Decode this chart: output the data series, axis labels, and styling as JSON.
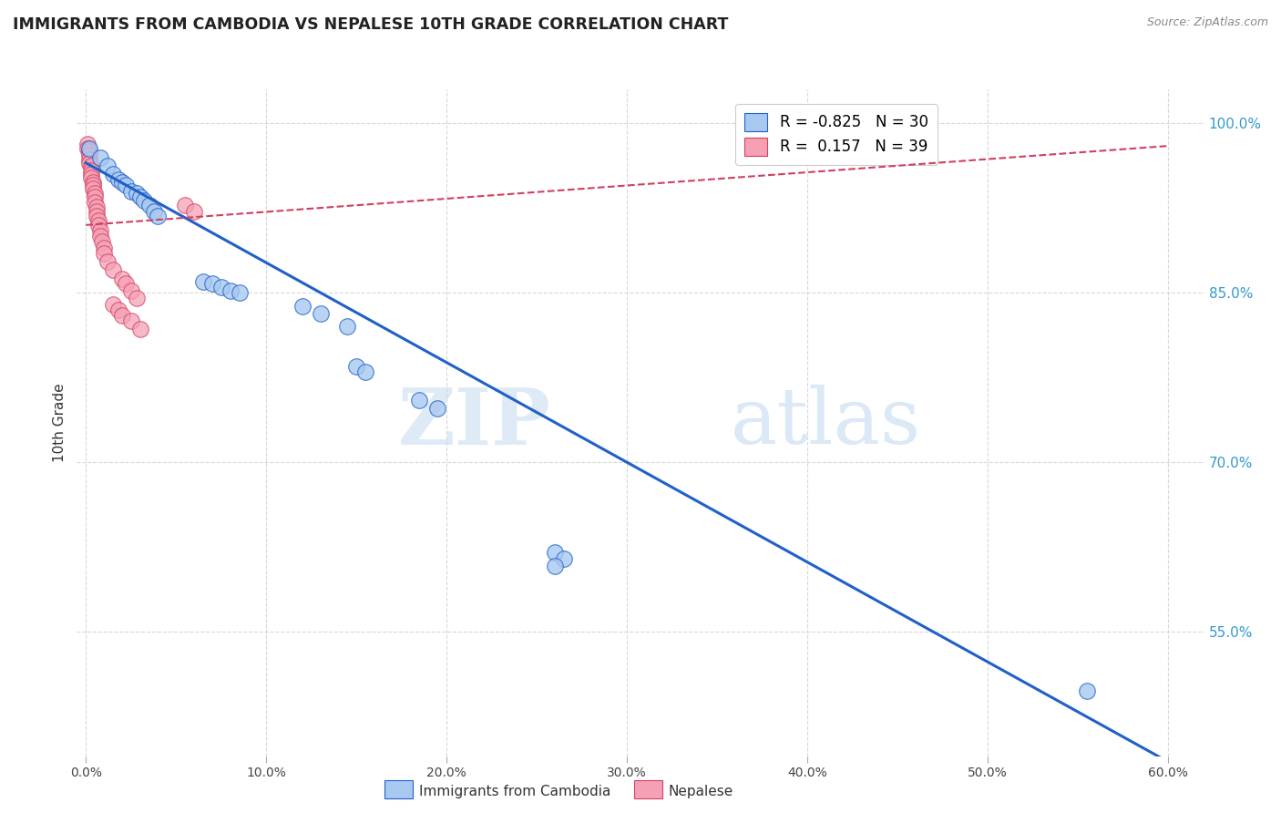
{
  "title": "IMMIGRANTS FROM CAMBODIA VS NEPALESE 10TH GRADE CORRELATION CHART",
  "source": "Source: ZipAtlas.com",
  "ylabel": "10th Grade",
  "y_ticks_right": [
    "100.0%",
    "85.0%",
    "70.0%",
    "55.0%"
  ],
  "legend_cambodia": "Immigrants from Cambodia",
  "legend_nepalese": "Nepalese",
  "r_cambodia": -0.825,
  "n_cambodia": 30,
  "r_nepalese": 0.157,
  "n_nepalese": 39,
  "color_cambodia": "#a8c8f0",
  "color_nepalese": "#f5a0b5",
  "line_color_cambodia": "#2060c8",
  "line_color_nepalese": "#d04060",
  "background_color": "#ffffff",
  "watermark_zip": "ZIP",
  "watermark_atlas": "atlas",
  "cambodia_points": [
    [
      0.002,
      0.978
    ],
    [
      0.008,
      0.97
    ],
    [
      0.012,
      0.962
    ],
    [
      0.015,
      0.955
    ],
    [
      0.018,
      0.95
    ],
    [
      0.02,
      0.948
    ],
    [
      0.022,
      0.945
    ],
    [
      0.025,
      0.94
    ],
    [
      0.028,
      0.938
    ],
    [
      0.03,
      0.935
    ],
    [
      0.032,
      0.932
    ],
    [
      0.035,
      0.928
    ],
    [
      0.038,
      0.922
    ],
    [
      0.04,
      0.918
    ],
    [
      0.065,
      0.86
    ],
    [
      0.07,
      0.858
    ],
    [
      0.075,
      0.855
    ],
    [
      0.08,
      0.852
    ],
    [
      0.085,
      0.85
    ],
    [
      0.12,
      0.838
    ],
    [
      0.13,
      0.832
    ],
    [
      0.145,
      0.82
    ],
    [
      0.15,
      0.785
    ],
    [
      0.155,
      0.78
    ],
    [
      0.185,
      0.755
    ],
    [
      0.195,
      0.748
    ],
    [
      0.26,
      0.62
    ],
    [
      0.265,
      0.615
    ],
    [
      0.26,
      0.608
    ],
    [
      0.555,
      0.498
    ]
  ],
  "nepalese_points": [
    [
      0.001,
      0.982
    ],
    [
      0.001,
      0.978
    ],
    [
      0.002,
      0.975
    ],
    [
      0.002,
      0.972
    ],
    [
      0.002,
      0.968
    ],
    [
      0.002,
      0.965
    ],
    [
      0.003,
      0.962
    ],
    [
      0.003,
      0.958
    ],
    [
      0.003,
      0.955
    ],
    [
      0.003,
      0.952
    ],
    [
      0.004,
      0.948
    ],
    [
      0.004,
      0.945
    ],
    [
      0.004,
      0.942
    ],
    [
      0.005,
      0.938
    ],
    [
      0.005,
      0.935
    ],
    [
      0.005,
      0.93
    ],
    [
      0.006,
      0.926
    ],
    [
      0.006,
      0.922
    ],
    [
      0.006,
      0.918
    ],
    [
      0.007,
      0.914
    ],
    [
      0.007,
      0.91
    ],
    [
      0.008,
      0.905
    ],
    [
      0.008,
      0.9
    ],
    [
      0.009,
      0.895
    ],
    [
      0.01,
      0.89
    ],
    [
      0.01,
      0.885
    ],
    [
      0.012,
      0.878
    ],
    [
      0.015,
      0.87
    ],
    [
      0.02,
      0.862
    ],
    [
      0.022,
      0.858
    ],
    [
      0.025,
      0.852
    ],
    [
      0.028,
      0.845
    ],
    [
      0.015,
      0.84
    ],
    [
      0.018,
      0.835
    ],
    [
      0.055,
      0.928
    ],
    [
      0.06,
      0.922
    ],
    [
      0.02,
      0.83
    ],
    [
      0.025,
      0.825
    ],
    [
      0.03,
      0.818
    ]
  ],
  "xlim": [
    -0.005,
    0.62
  ],
  "ylim": [
    0.44,
    1.03
  ],
  "x_ticks": [
    0.0,
    0.1,
    0.2,
    0.3,
    0.4,
    0.5,
    0.6
  ],
  "y_ticks": [
    1.0,
    0.85,
    0.7,
    0.55
  ],
  "grid_color": "#d8d8d8",
  "cam_line_x": [
    0.0,
    0.6
  ],
  "cam_line_y": [
    0.965,
    0.435
  ],
  "nep_line_x": [
    0.0,
    0.6
  ],
  "nep_line_y": [
    0.91,
    0.98
  ]
}
